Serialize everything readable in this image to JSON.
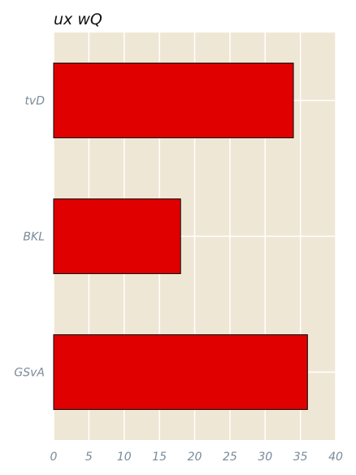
{
  "chart_data": {
    "type": "bar",
    "orientation": "horizontal",
    "title": "ux wQ",
    "xlabel": "",
    "ylabel": "",
    "categories": [
      "tvD",
      "BKL",
      "GSvA"
    ],
    "values": [
      34,
      18,
      36
    ],
    "xlim": [
      0,
      40
    ],
    "xticks": [
      "0",
      "5",
      "10",
      "15",
      "20",
      "25",
      "30",
      "35",
      "40"
    ],
    "grid": true,
    "legend": "none",
    "colors": {
      "bar": "#e00000",
      "bar_edge": "#000000",
      "plot_background": "#efe7d5",
      "grid": "#ffffff"
    }
  }
}
